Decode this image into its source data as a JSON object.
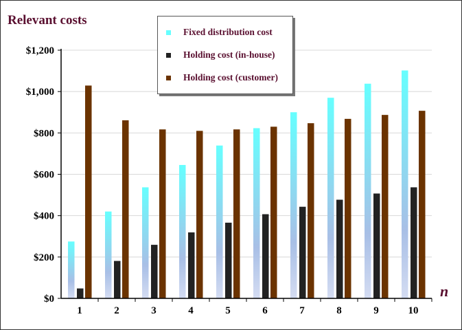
{
  "chart_data": {
    "type": "bar",
    "title": "Relevant costs",
    "xlabel": "n",
    "ylabel": "",
    "categories": [
      "1",
      "2",
      "3",
      "4",
      "5",
      "6",
      "7",
      "8",
      "9",
      "10"
    ],
    "ylim": [
      0,
      1200
    ],
    "yticks": [
      "$0",
      "$200",
      "$400",
      "$600",
      "$800",
      "$1,000",
      "$1,200"
    ],
    "grid": true,
    "legend_placement": "top-center",
    "series": [
      {
        "name": "Fixed distribution cost",
        "color": "#66ffff",
        "values": [
          275,
          420,
          537,
          645,
          739,
          823,
          900,
          970,
          1038,
          1102
        ]
      },
      {
        "name": "Holding cost (in-house)",
        "color": "#222222",
        "values": [
          48,
          181,
          259,
          319,
          366,
          407,
          443,
          477,
          507,
          537
        ]
      },
      {
        "name": "Holding cost (customer)",
        "color": "#6b3300",
        "values": [
          1029,
          861,
          817,
          810,
          817,
          830,
          847,
          868,
          887,
          907
        ]
      }
    ]
  }
}
